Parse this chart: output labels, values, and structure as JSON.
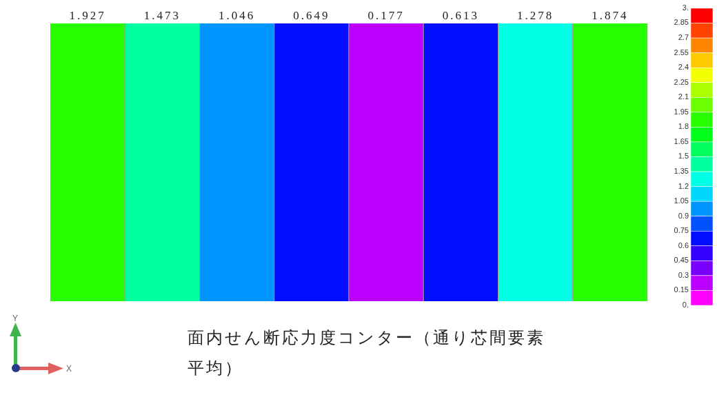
{
  "chart_data": {
    "type": "heatmap",
    "title": "面内せん断応力度コンター（通り芯間要素平均）",
    "annotations": [
      "Y",
      "X"
    ],
    "categories": [
      "1.927",
      "1.473",
      "1.046",
      "0.649",
      "0.177",
      "0.613",
      "1.278",
      "1.874"
    ],
    "y_categories": [
      null
    ],
    "cells": [
      [
        1.927,
        1.473,
        1.046,
        0.649,
        0.177,
        0.613,
        1.278,
        1.874
      ]
    ],
    "clim": [
      0,
      3
    ],
    "cticks": [
      {
        "value": 3,
        "label": "3."
      },
      2.85,
      2.7,
      2.55,
      2.4,
      2.25,
      2.1,
      1.95,
      1.8,
      1.65,
      1.5,
      1.35,
      1.2,
      1.05,
      0.9,
      0.75,
      0.6,
      0.45,
      0.3,
      0.15,
      {
        "value": 0,
        "label": "0."
      }
    ]
  }
}
